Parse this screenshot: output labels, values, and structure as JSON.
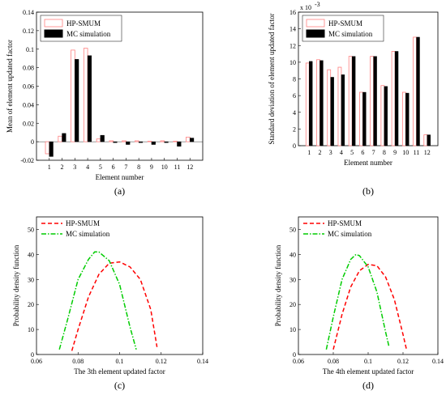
{
  "chart_data": [
    {
      "type": "bar",
      "caption": "(a)",
      "xlabel": "Element number",
      "ylabel": "Mean of element updated factor",
      "categories": [
        "1",
        "2",
        "3",
        "4",
        "5",
        "6",
        "7",
        "8",
        "9",
        "10",
        "11",
        "12"
      ],
      "ylim": [
        -0.02,
        0.14
      ],
      "yticks": [
        "-0.02",
        "0",
        "0.02",
        "0.04",
        "0.06",
        "0.08",
        "0.1",
        "0.12",
        "0.14"
      ],
      "legend_position": "top-left",
      "series": [
        {
          "name": "HP-SMUM",
          "style": "outline",
          "color": "#ff8080",
          "values": [
            -0.013,
            0.006,
            0.099,
            0.101,
            0.003,
            0.001,
            0.001,
            0.001,
            0.0005,
            0.001,
            0.0005,
            0.005
          ]
        },
        {
          "name": "MC simulation",
          "style": "filled",
          "color": "#000000",
          "values": [
            -0.016,
            0.009,
            0.089,
            0.093,
            0.007,
            -0.001,
            -0.003,
            -0.001,
            -0.003,
            -0.001,
            -0.005,
            0.004
          ]
        }
      ]
    },
    {
      "type": "bar",
      "caption": "(b)",
      "xlabel": "Element number",
      "ylabel": "Standard deviation of element updated factor",
      "exponent_label": "x 10",
      "exponent_power": "-3",
      "categories": [
        "1",
        "2",
        "3",
        "4",
        "5",
        "6",
        "7",
        "8",
        "9",
        "10",
        "11",
        "12"
      ],
      "ylim": [
        0,
        16
      ],
      "yticks": [
        "0",
        "2",
        "4",
        "6",
        "8",
        "10",
        "12",
        "14",
        "16"
      ],
      "legend_position": "top-left",
      "series": [
        {
          "name": "HP-SMUM",
          "style": "outline",
          "color": "#ff8080",
          "values": [
            9.9,
            10.3,
            9.1,
            9.4,
            10.7,
            6.4,
            10.7,
            7.2,
            11.3,
            6.4,
            13.0,
            1.3
          ]
        },
        {
          "name": "MC simulation",
          "style": "filled",
          "color": "#000000",
          "values": [
            10.1,
            10.2,
            8.2,
            8.5,
            10.7,
            6.4,
            10.7,
            7.1,
            11.3,
            6.3,
            13.0,
            1.3
          ]
        }
      ]
    },
    {
      "type": "line",
      "caption": "(c)",
      "xlabel": "The 3th element updated factor",
      "ylabel": "Probability density function",
      "xlim": [
        0.06,
        0.14
      ],
      "ylim": [
        0,
        55
      ],
      "xticks": [
        "0.06",
        "0.08",
        "0.1",
        "0.12",
        "0.14"
      ],
      "yticks": [
        "0",
        "10",
        "20",
        "30",
        "40",
        "50"
      ],
      "legend_position": "top-left",
      "series": [
        {
          "name": "HP-SMUM",
          "color": "#ff0000",
          "dash": "dashed",
          "x": [
            0.077,
            0.08,
            0.085,
            0.09,
            0.095,
            0.1,
            0.105,
            0.11,
            0.115,
            0.118
          ],
          "y": [
            1.5,
            10,
            23,
            32,
            36.5,
            37,
            35,
            30,
            18,
            3
          ]
        },
        {
          "name": "MC simulation",
          "color": "#00cc00",
          "dash": "dashdot",
          "x": [
            0.071,
            0.075,
            0.08,
            0.085,
            0.088,
            0.09,
            0.095,
            0.1,
            0.105,
            0.108
          ],
          "y": [
            2,
            14,
            30,
            38,
            41,
            41,
            37.5,
            28,
            11,
            2
          ]
        }
      ]
    },
    {
      "type": "line",
      "caption": "(d)",
      "xlabel": "The 4th element updated factor",
      "ylabel": "Probability density function",
      "xlim": [
        0.06,
        0.14
      ],
      "ylim": [
        0,
        55
      ],
      "xticks": [
        "0.06",
        "0.08",
        "0.1",
        "0.12",
        "0.14"
      ],
      "yticks": [
        "0",
        "10",
        "20",
        "30",
        "40",
        "50"
      ],
      "legend_position": "top-left",
      "series": [
        {
          "name": "HP-SMUM",
          "color": "#ff0000",
          "dash": "dashed",
          "x": [
            0.08,
            0.085,
            0.09,
            0.095,
            0.1,
            0.105,
            0.11,
            0.115,
            0.12,
            0.122
          ],
          "y": [
            2,
            16,
            27,
            33.5,
            36,
            35.5,
            31,
            22,
            8,
            2
          ]
        },
        {
          "name": "MC simulation",
          "color": "#00cc00",
          "dash": "dashdot",
          "x": [
            0.076,
            0.08,
            0.085,
            0.09,
            0.093,
            0.095,
            0.1,
            0.105,
            0.11,
            0.112
          ],
          "y": [
            2,
            15,
            30,
            38,
            40,
            39.5,
            35,
            25,
            9,
            3
          ]
        }
      ]
    }
  ]
}
